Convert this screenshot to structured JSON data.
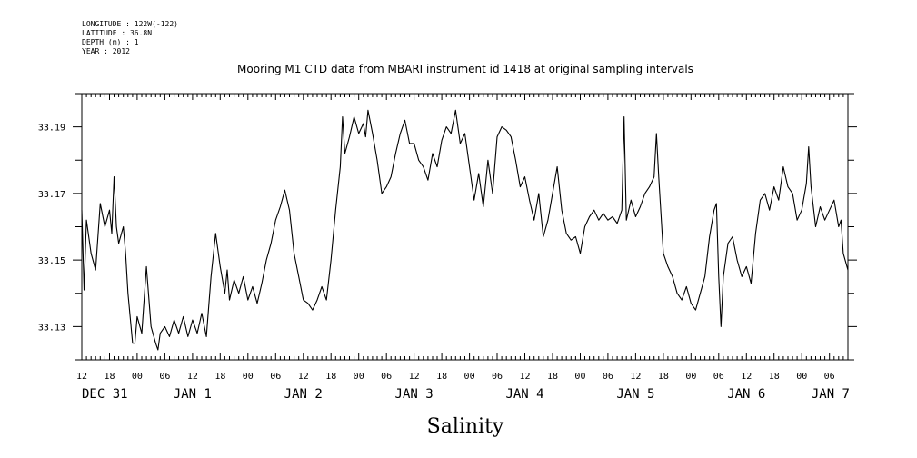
{
  "header": {
    "meta_lines": [
      "LONGITUDE : 122W(-122)",
      "LATITUDE : 36.8N",
      "DEPTH (m) : 1",
      "YEAR : 2012"
    ]
  },
  "chart_data": {
    "type": "line",
    "title": "Mooring M1 CTD data from MBARI instrument id 1418 at original sampling intervals",
    "xlabel": "Salinity",
    "ylabel": "",
    "ylim": [
      33.12,
      33.2
    ],
    "yticks": [
      33.13,
      33.15,
      33.17,
      33.19
    ],
    "ytick_labels": [
      "33.13",
      "33.15",
      "33.17",
      "33.19"
    ],
    "x_unit": "hours since Dec 31 12:00",
    "xlim": [
      0,
      166
    ],
    "xtick_hours": [
      0,
      6,
      12,
      18,
      24,
      30,
      36,
      42,
      48,
      54,
      60,
      66,
      72,
      78,
      84,
      90,
      96,
      102,
      108,
      114,
      120,
      126,
      132,
      138,
      144,
      150,
      156,
      162
    ],
    "xtick_labels": [
      "12",
      "18",
      "00",
      "06",
      "12",
      "18",
      "00",
      "06",
      "12",
      "18",
      "00",
      "06",
      "12",
      "18",
      "00",
      "06",
      "12",
      "18",
      "00",
      "06",
      "12",
      "18",
      "00",
      "06",
      "12",
      "18",
      "00",
      "06"
    ],
    "date_labels": [
      {
        "hour": 0,
        "text": "DEC 31"
      },
      {
        "hour": 24,
        "text": "JAN  1"
      },
      {
        "hour": 48,
        "text": "JAN  2"
      },
      {
        "hour": 72,
        "text": "JAN  3"
      },
      {
        "hour": 96,
        "text": "JAN  4"
      },
      {
        "hour": 120,
        "text": "JAN  5"
      },
      {
        "hour": 144,
        "text": "JAN  6"
      },
      {
        "hour": 162,
        "text": "JAN  7"
      }
    ],
    "series": [
      {
        "color": "#000000",
        "points": [
          [
            0,
            33.165
          ],
          [
            0.5,
            33.141
          ],
          [
            1,
            33.162
          ],
          [
            2,
            33.152
          ],
          [
            3,
            33.147
          ],
          [
            4,
            33.167
          ],
          [
            5,
            33.16
          ],
          [
            6,
            33.165
          ],
          [
            6.5,
            33.158
          ],
          [
            7,
            33.175
          ],
          [
            7.5,
            33.16
          ],
          [
            8,
            33.155
          ],
          [
            9,
            33.16
          ],
          [
            9.5,
            33.152
          ],
          [
            10,
            33.14
          ],
          [
            11,
            33.125
          ],
          [
            11.5,
            33.125
          ],
          [
            12,
            33.133
          ],
          [
            13,
            33.128
          ],
          [
            14,
            33.148
          ],
          [
            15,
            33.13
          ],
          [
            16,
            33.125
          ],
          [
            16.5,
            33.123
          ],
          [
            17,
            33.128
          ],
          [
            18,
            33.13
          ],
          [
            19,
            33.127
          ],
          [
            20,
            33.132
          ],
          [
            21,
            33.128
          ],
          [
            22,
            33.133
          ],
          [
            23,
            33.127
          ],
          [
            24,
            33.132
          ],
          [
            25,
            33.128
          ],
          [
            26,
            33.134
          ],
          [
            27,
            33.127
          ],
          [
            28,
            33.145
          ],
          [
            29,
            33.158
          ],
          [
            30,
            33.148
          ],
          [
            31,
            33.14
          ],
          [
            31.5,
            33.147
          ],
          [
            32,
            33.138
          ],
          [
            33,
            33.144
          ],
          [
            34,
            33.14
          ],
          [
            35,
            33.145
          ],
          [
            36,
            33.138
          ],
          [
            37,
            33.142
          ],
          [
            38,
            33.137
          ],
          [
            39,
            33.143
          ],
          [
            40,
            33.15
          ],
          [
            41,
            33.155
          ],
          [
            42,
            33.162
          ],
          [
            43,
            33.166
          ],
          [
            44,
            33.171
          ],
          [
            45,
            33.165
          ],
          [
            46,
            33.152
          ],
          [
            47,
            33.145
          ],
          [
            48,
            33.138
          ],
          [
            49,
            33.137
          ],
          [
            50,
            33.135
          ],
          [
            51,
            33.138
          ],
          [
            52,
            33.142
          ],
          [
            53,
            33.138
          ],
          [
            54,
            33.15
          ],
          [
            55,
            33.165
          ],
          [
            56,
            33.178
          ],
          [
            56.5,
            33.193
          ],
          [
            57,
            33.182
          ],
          [
            58,
            33.187
          ],
          [
            59,
            33.193
          ],
          [
            60,
            33.188
          ],
          [
            61,
            33.191
          ],
          [
            61.5,
            33.187
          ],
          [
            62,
            33.195
          ],
          [
            63,
            33.188
          ],
          [
            64,
            33.18
          ],
          [
            65,
            33.17
          ],
          [
            66,
            33.172
          ],
          [
            67,
            33.175
          ],
          [
            68,
            33.182
          ],
          [
            69,
            33.188
          ],
          [
            70,
            33.192
          ],
          [
            71,
            33.185
          ],
          [
            72,
            33.185
          ],
          [
            73,
            33.18
          ],
          [
            74,
            33.178
          ],
          [
            75,
            33.174
          ],
          [
            76,
            33.182
          ],
          [
            77,
            33.178
          ],
          [
            78,
            33.186
          ],
          [
            79,
            33.19
          ],
          [
            80,
            33.188
          ],
          [
            81,
            33.195
          ],
          [
            82,
            33.185
          ],
          [
            83,
            33.188
          ],
          [
            84,
            33.178
          ],
          [
            85,
            33.168
          ],
          [
            86,
            33.176
          ],
          [
            87,
            33.166
          ],
          [
            88,
            33.18
          ],
          [
            89,
            33.17
          ],
          [
            90,
            33.187
          ],
          [
            91,
            33.19
          ],
          [
            92,
            33.189
          ],
          [
            93,
            33.187
          ],
          [
            94,
            33.18
          ],
          [
            95,
            33.172
          ],
          [
            96,
            33.175
          ],
          [
            97,
            33.168
          ],
          [
            98,
            33.162
          ],
          [
            99,
            33.17
          ],
          [
            100,
            33.157
          ],
          [
            101,
            33.162
          ],
          [
            102,
            33.17
          ],
          [
            103,
            33.178
          ],
          [
            104,
            33.165
          ],
          [
            105,
            33.158
          ],
          [
            106,
            33.156
          ],
          [
            107,
            33.157
          ],
          [
            108,
            33.152
          ],
          [
            109,
            33.16
          ],
          [
            110,
            33.163
          ],
          [
            111,
            33.165
          ],
          [
            112,
            33.162
          ],
          [
            113,
            33.164
          ],
          [
            114,
            33.162
          ],
          [
            115,
            33.163
          ],
          [
            116,
            33.161
          ],
          [
            117,
            33.165
          ],
          [
            117.5,
            33.193
          ],
          [
            118,
            33.162
          ],
          [
            119,
            33.168
          ],
          [
            120,
            33.163
          ],
          [
            121,
            33.166
          ],
          [
            122,
            33.17
          ],
          [
            123,
            33.172
          ],
          [
            124,
            33.175
          ],
          [
            124.5,
            33.188
          ],
          [
            125,
            33.175
          ],
          [
            126,
            33.152
          ],
          [
            127,
            33.148
          ],
          [
            128,
            33.145
          ],
          [
            129,
            33.14
          ],
          [
            130,
            33.138
          ],
          [
            131,
            33.142
          ],
          [
            132,
            33.137
          ],
          [
            133,
            33.135
          ],
          [
            134,
            33.14
          ],
          [
            135,
            33.145
          ],
          [
            136,
            33.157
          ],
          [
            137,
            33.165
          ],
          [
            137.5,
            33.167
          ],
          [
            138,
            33.145
          ],
          [
            138.5,
            33.13
          ],
          [
            139,
            33.145
          ],
          [
            140,
            33.155
          ],
          [
            141,
            33.157
          ],
          [
            142,
            33.15
          ],
          [
            143,
            33.145
          ],
          [
            144,
            33.148
          ],
          [
            145,
            33.143
          ],
          [
            146,
            33.158
          ],
          [
            147,
            33.168
          ],
          [
            148,
            33.17
          ],
          [
            149,
            33.165
          ],
          [
            150,
            33.172
          ],
          [
            151,
            33.168
          ],
          [
            152,
            33.178
          ],
          [
            153,
            33.172
          ],
          [
            154,
            33.17
          ],
          [
            155,
            33.162
          ],
          [
            156,
            33.165
          ],
          [
            157,
            33.173
          ],
          [
            157.5,
            33.184
          ],
          [
            158,
            33.172
          ],
          [
            159,
            33.16
          ],
          [
            160,
            33.166
          ],
          [
            161,
            33.162
          ],
          [
            162,
            33.165
          ],
          [
            163,
            33.168
          ],
          [
            164,
            33.16
          ],
          [
            164.5,
            33.162
          ],
          [
            165,
            33.152
          ],
          [
            166,
            33.147
          ]
        ]
      }
    ]
  }
}
